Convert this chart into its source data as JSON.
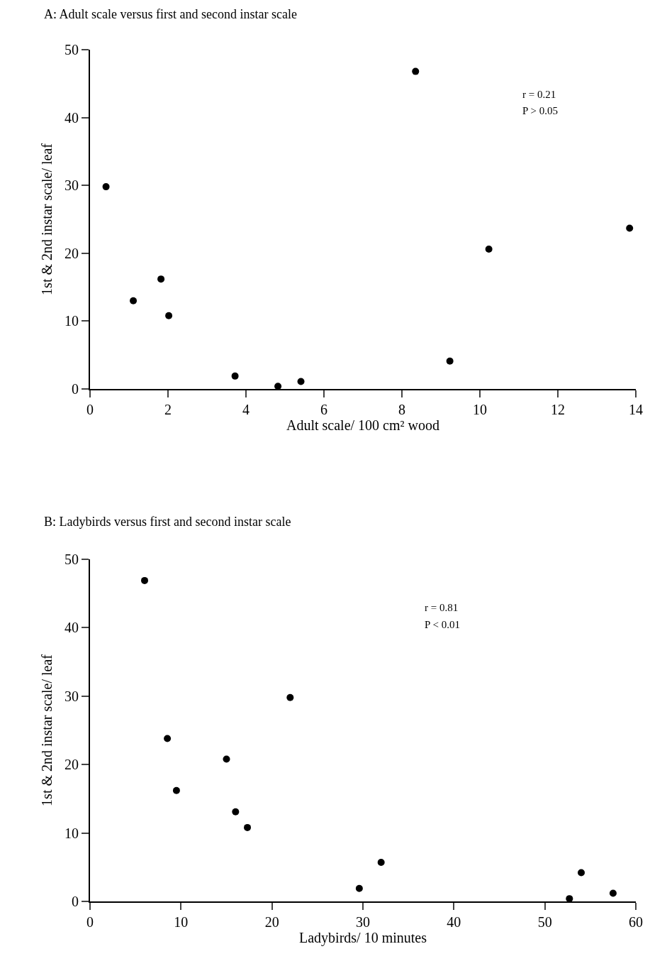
{
  "chart_data": [
    {
      "type": "scatter",
      "title": "A: Adult scale versus first and second instar scale",
      "xlabel": "Adult scale/ 100 cm² wood",
      "ylabel": "1st & 2nd instar scale/ leaf",
      "annotations": [
        "r = 0.21",
        "P > 0.05"
      ],
      "x": [
        0.41,
        1.11,
        1.82,
        2.02,
        3.72,
        4.82,
        5.41,
        8.35,
        9.23,
        10.23,
        13.84
      ],
      "values": [
        29.8,
        13.0,
        16.2,
        10.8,
        1.9,
        0.4,
        1.1,
        46.8,
        4.1,
        20.6,
        23.7
      ],
      "color": "#000000",
      "marker": "circle",
      "xlim": [
        0,
        14
      ],
      "xticks": [
        0,
        2,
        4,
        6,
        8,
        10,
        12,
        14
      ],
      "ylim": [
        0,
        50
      ],
      "yticks": [
        0,
        10,
        20,
        30,
        40,
        50
      ],
      "grid": false
    },
    {
      "type": "scatter",
      "title": "B: Ladybirds versus first and second instar scale",
      "xlabel": "Ladybirds/ 10 minutes",
      "ylabel": "1st & 2nd instar scale/ leaf",
      "annotations": [
        "r = 0.81",
        "P < 0.01"
      ],
      "x": [
        6.0,
        8.5,
        9.5,
        15.0,
        16.0,
        17.3,
        22.0,
        29.6,
        32.0,
        52.7,
        54.0,
        57.5
      ],
      "values": [
        46.9,
        23.8,
        16.2,
        20.8,
        13.1,
        10.8,
        29.8,
        1.9,
        5.7,
        0.4,
        4.2,
        1.2
      ],
      "color": "#000000",
      "marker": "circle",
      "xlim": [
        0,
        60
      ],
      "xticks": [
        0,
        10,
        20,
        30,
        40,
        50,
        60
      ],
      "ylim": [
        0,
        50
      ],
      "yticks": [
        0,
        10,
        20,
        30,
        40,
        50
      ],
      "grid": false
    }
  ]
}
